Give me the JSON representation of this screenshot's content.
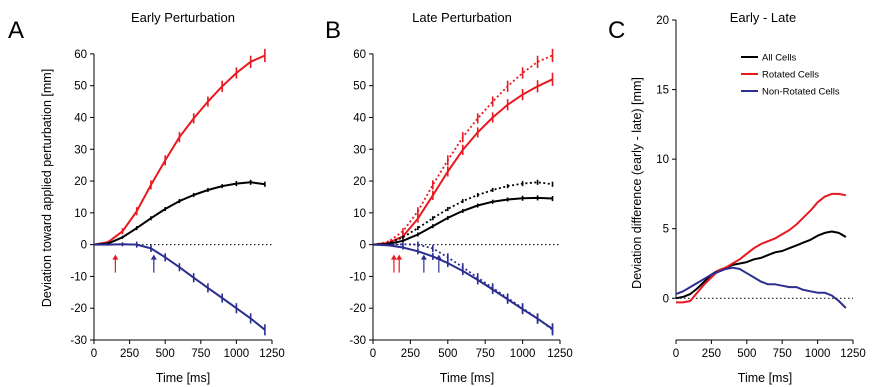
{
  "colors": {
    "all": "#000000",
    "rotated": "#e8191f",
    "nonrotated": "#2c2e8f"
  },
  "chart_data": [
    {
      "type": "line",
      "panel_letter": "A",
      "title": "Early Perturbation",
      "xlabel": "Time [ms]",
      "ylabel": "Deviation toward applied perturbation [mm]",
      "xlim": [
        0,
        1250
      ],
      "ylim": [
        -30,
        65
      ],
      "xticks": [
        0,
        250,
        500,
        750,
        1000,
        1250
      ],
      "xtick_labels": [
        "0",
        "250",
        "500",
        "750",
        "1000",
        "1250"
      ],
      "yticks": [
        -30,
        -20,
        -10,
        0,
        10,
        20,
        30,
        40,
        50,
        60
      ],
      "ytick_labels": [
        "-30",
        "-20",
        "-10",
        "0",
        "10",
        "20",
        "30",
        "40",
        "50",
        "60"
      ],
      "zero_line": true,
      "series": [
        {
          "color_key": "rotated",
          "dotted": false,
          "x": [
            0,
            100,
            200,
            300,
            400,
            500,
            600,
            700,
            800,
            900,
            1000,
            1100,
            1200
          ],
          "y": [
            0,
            0.8,
            4.2,
            10.5,
            18.8,
            26.5,
            33.8,
            39.7,
            45.0,
            49.8,
            54.0,
            57.5,
            59.5
          ],
          "err": [
            0,
            0.3,
            0.6,
            0.8,
            0.9,
            1.0,
            1.0,
            1.0,
            1.0,
            1.1,
            1.1,
            1.2,
            1.3
          ]
        },
        {
          "color_key": "all",
          "dotted": false,
          "x": [
            0,
            100,
            200,
            300,
            400,
            500,
            600,
            700,
            800,
            900,
            1000,
            1100,
            1200
          ],
          "y": [
            0,
            0.4,
            2.3,
            5.2,
            8.3,
            11.2,
            13.7,
            15.6,
            17.2,
            18.4,
            19.2,
            19.6,
            19.0
          ],
          "err": [
            0,
            0.2,
            0.3,
            0.4,
            0.4,
            0.4,
            0.4,
            0.4,
            0.4,
            0.4,
            0.5,
            0.5,
            0.5
          ]
        },
        {
          "color_key": "nonrotated",
          "dotted": false,
          "x": [
            0,
            100,
            200,
            300,
            400,
            500,
            600,
            700,
            800,
            900,
            1000,
            1100,
            1200
          ],
          "y": [
            0,
            0,
            0.1,
            0,
            -1.2,
            -4.0,
            -7.1,
            -10.4,
            -13.6,
            -16.8,
            -20.0,
            -23.2,
            -26.8
          ],
          "err": [
            0,
            0.2,
            0.4,
            0.6,
            0.7,
            0.8,
            0.8,
            0.9,
            0.9,
            0.9,
            1.0,
            1.0,
            1.1
          ]
        }
      ],
      "arrows": [
        {
          "x": 150,
          "color_key": "rotated"
        },
        {
          "x": 420,
          "color_key": "nonrotated"
        }
      ]
    },
    {
      "type": "line",
      "panel_letter": "B",
      "title": "Late Perturbation",
      "xlabel": "Time [ms]",
      "ylabel": "",
      "xlim": [
        0,
        1250
      ],
      "ylim": [
        -30,
        65
      ],
      "xticks": [
        0,
        250,
        500,
        750,
        1000,
        1250
      ],
      "xtick_labels": [
        "0",
        "250",
        "500",
        "750",
        "1000",
        "1250"
      ],
      "yticks": [
        -30,
        -20,
        -10,
        0,
        10,
        20,
        30,
        40,
        50,
        60
      ],
      "ytick_labels": [
        "-30",
        "-20",
        "-10",
        "0",
        "10",
        "20",
        "30",
        "40",
        "50",
        "60"
      ],
      "zero_line": true,
      "series": [
        {
          "color_key": "rotated",
          "dotted": true,
          "x": [
            0,
            100,
            200,
            300,
            400,
            500,
            600,
            700,
            800,
            900,
            1000,
            1100,
            1200
          ],
          "y": [
            0,
            0.8,
            4.2,
            10.5,
            18.8,
            26.5,
            33.8,
            39.7,
            45.0,
            49.8,
            54.0,
            57.5,
            59.5
          ],
          "err": [
            0,
            0.3,
            0.6,
            0.8,
            0.9,
            1.0,
            1.0,
            1.0,
            1.0,
            1.1,
            1.1,
            1.2,
            1.3
          ]
        },
        {
          "color_key": "rotated",
          "dotted": false,
          "x": [
            0,
            100,
            200,
            300,
            400,
            500,
            600,
            700,
            800,
            900,
            1000,
            1100,
            1200
          ],
          "y": [
            0,
            0.5,
            2.6,
            8.2,
            15.5,
            23.0,
            29.8,
            35.3,
            40.0,
            44.0,
            47.2,
            49.8,
            52.0
          ],
          "err": [
            0,
            0.3,
            0.6,
            0.8,
            0.9,
            1.0,
            1.0,
            1.0,
            1.0,
            1.1,
            1.1,
            1.2,
            1.3
          ]
        },
        {
          "color_key": "all",
          "dotted": true,
          "x": [
            0,
            100,
            200,
            300,
            400,
            500,
            600,
            700,
            800,
            900,
            1000,
            1100,
            1200
          ],
          "y": [
            0,
            0.4,
            2.3,
            5.2,
            8.3,
            11.2,
            13.7,
            15.6,
            17.2,
            18.4,
            19.2,
            19.6,
            19.0
          ],
          "err": [
            0,
            0.2,
            0.3,
            0.4,
            0.4,
            0.4,
            0.4,
            0.4,
            0.4,
            0.4,
            0.5,
            0.5,
            0.5
          ]
        },
        {
          "color_key": "all",
          "dotted": false,
          "x": [
            0,
            100,
            200,
            300,
            400,
            500,
            600,
            700,
            800,
            900,
            1000,
            1100,
            1200
          ],
          "y": [
            0,
            0.2,
            1.2,
            3.2,
            5.8,
            8.4,
            10.6,
            12.3,
            13.5,
            14.2,
            14.6,
            14.7,
            14.5
          ],
          "err": [
            0,
            0.2,
            0.3,
            0.4,
            0.4,
            0.4,
            0.4,
            0.4,
            0.4,
            0.4,
            0.5,
            0.5,
            0.5
          ]
        },
        {
          "color_key": "nonrotated",
          "dotted": true,
          "x": [
            0,
            100,
            200,
            300,
            400,
            500,
            600,
            700,
            800,
            900,
            1000,
            1100,
            1200
          ],
          "y": [
            0,
            0,
            0.1,
            0,
            -1.2,
            -4.0,
            -7.1,
            -10.4,
            -13.6,
            -16.8,
            -20.0,
            -23.2,
            -26.8
          ],
          "err": [
            0,
            0.2,
            0.4,
            0.6,
            0.7,
            0.8,
            0.8,
            0.9,
            0.9,
            0.9,
            1.0,
            1.0,
            1.1
          ]
        },
        {
          "color_key": "nonrotated",
          "dotted": false,
          "x": [
            0,
            100,
            200,
            300,
            400,
            500,
            600,
            700,
            800,
            900,
            1000,
            1100,
            1200
          ],
          "y": [
            0,
            -0.2,
            -0.9,
            -2.1,
            -3.7,
            -5.8,
            -8.3,
            -11.1,
            -14.1,
            -17.2,
            -20.3,
            -23.3,
            -26.5
          ],
          "err": [
            0,
            0.2,
            0.4,
            0.6,
            0.7,
            0.8,
            0.8,
            0.9,
            0.9,
            0.9,
            1.0,
            1.0,
            1.1
          ]
        }
      ],
      "arrows": [
        {
          "x": 140,
          "color_key": "rotated"
        },
        {
          "x": 175,
          "color_key": "rotated"
        },
        {
          "x": 340,
          "color_key": "nonrotated"
        },
        {
          "x": 440,
          "color_key": "nonrotated"
        }
      ]
    },
    {
      "type": "line",
      "panel_letter": "C",
      "title": "Early - Late",
      "xlabel": "Time [ms]",
      "ylabel": "Deviation difference (early - late) [mm]",
      "xlim": [
        0,
        1250
      ],
      "ylim": [
        -3,
        20
      ],
      "xticks": [
        0,
        250,
        500,
        750,
        1000,
        1250
      ],
      "xtick_labels": [
        "0",
        "250",
        "500",
        "750",
        "1000",
        "1250"
      ],
      "yticks": [
        0,
        5,
        10,
        15,
        20
      ],
      "ytick_labels": [
        "0",
        "5",
        "10",
        "15",
        "20"
      ],
      "zero_line": true,
      "legend": {
        "position": "top-right",
        "entries": [
          {
            "label": "All Cells",
            "color_key": "all"
          },
          {
            "label": "Rotated Cells",
            "color_key": "rotated"
          },
          {
            "label": "Non-Rotated Cells",
            "color_key": "nonrotated"
          }
        ]
      },
      "series": [
        {
          "color_key": "all",
          "dotted": false,
          "x": [
            0,
            50,
            100,
            150,
            200,
            250,
            300,
            350,
            400,
            450,
            500,
            550,
            600,
            650,
            700,
            750,
            800,
            850,
            900,
            950,
            1000,
            1050,
            1100,
            1150,
            1200
          ],
          "y": [
            0.0,
            0.1,
            0.3,
            0.7,
            1.2,
            1.7,
            2.0,
            2.2,
            2.4,
            2.5,
            2.6,
            2.8,
            2.9,
            3.1,
            3.3,
            3.4,
            3.6,
            3.8,
            4.0,
            4.2,
            4.5,
            4.7,
            4.8,
            4.7,
            4.4
          ]
        },
        {
          "color_key": "rotated",
          "dotted": false,
          "x": [
            0,
            50,
            100,
            150,
            200,
            250,
            300,
            350,
            400,
            450,
            500,
            550,
            600,
            650,
            700,
            750,
            800,
            850,
            900,
            950,
            1000,
            1050,
            1100,
            1150,
            1200
          ],
          "y": [
            -0.3,
            -0.3,
            -0.2,
            0.4,
            1.0,
            1.5,
            2.0,
            2.2,
            2.5,
            2.8,
            3.2,
            3.6,
            3.9,
            4.1,
            4.3,
            4.6,
            4.9,
            5.3,
            5.8,
            6.3,
            6.9,
            7.3,
            7.5,
            7.5,
            7.4
          ]
        },
        {
          "color_key": "nonrotated",
          "dotted": false,
          "x": [
            0,
            50,
            100,
            150,
            200,
            250,
            300,
            350,
            400,
            450,
            500,
            550,
            600,
            650,
            700,
            750,
            800,
            850,
            900,
            950,
            1000,
            1050,
            1100,
            1150,
            1200
          ],
          "y": [
            0.3,
            0.5,
            0.8,
            1.1,
            1.4,
            1.7,
            1.9,
            2.1,
            2.2,
            2.1,
            1.8,
            1.5,
            1.2,
            1.0,
            1.0,
            0.9,
            0.8,
            0.8,
            0.6,
            0.5,
            0.4,
            0.4,
            0.2,
            -0.2,
            -0.7
          ]
        }
      ]
    }
  ]
}
